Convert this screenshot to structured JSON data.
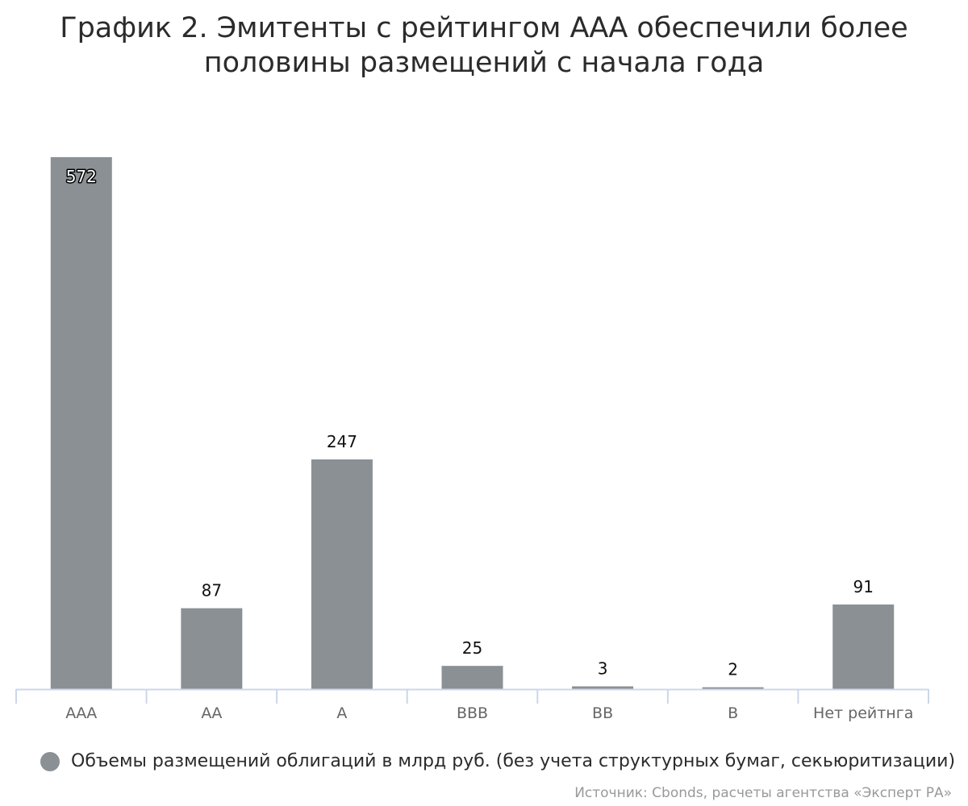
{
  "chart_data": {
    "type": "bar",
    "title": "График 2. Эмитенты с рейтингом ААА обеспечили более половины размещений с начала года",
    "categories": [
      "ААА",
      "АА",
      "А",
      "ВВВ",
      "ВВ",
      "В",
      "Нет рейтнга"
    ],
    "series": [
      {
        "name": "Объемы размещений облигаций в млрд руб. (без учета структурных бумаг, секьюритизации)",
        "values": [
          572,
          87,
          247,
          25,
          3,
          2,
          91
        ],
        "color": "#8b9094"
      }
    ],
    "ylim": [
      0,
      580
    ],
    "grid": false,
    "legend": "bottom-left",
    "source": "Источник: Cbonds, расчеты агентства «Эксперт РА»",
    "axis_color": "#ccd6eb"
  }
}
